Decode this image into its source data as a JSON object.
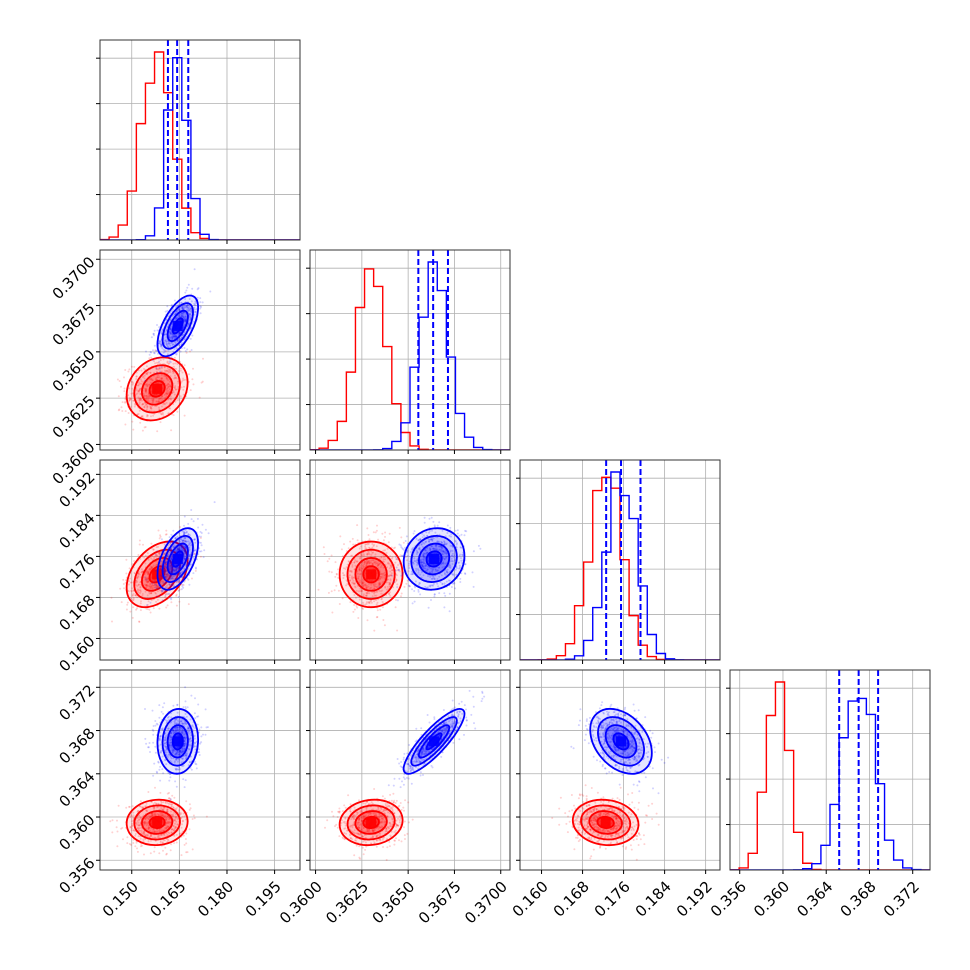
{
  "chart_data": {
    "type": "corner",
    "title": "",
    "colors": {
      "red": "#ff0000",
      "blue": "#0000ff"
    },
    "grid": true,
    "parameters": [
      {
        "range": [
          0.14,
          0.203
        ],
        "ticks": [
          "0.150",
          "0.165",
          "0.180",
          "0.195"
        ],
        "tick_values": [
          0.15,
          0.165,
          0.18,
          0.195
        ]
      },
      {
        "range": [
          0.3597,
          0.3705
        ],
        "ticks": [
          "0.3600",
          "0.3625",
          "0.3650",
          "0.3675",
          "0.3700"
        ],
        "tick_values": [
          0.36,
          0.3625,
          0.365,
          0.3675,
          0.37
        ]
      },
      {
        "range": [
          0.1558,
          0.1948
        ],
        "ticks": [
          "0.160",
          "0.168",
          "0.176",
          "0.184",
          "0.192"
        ],
        "tick_values": [
          0.16,
          0.168,
          0.176,
          0.184,
          0.192
        ]
      },
      {
        "range": [
          0.3551,
          0.3736
        ],
        "ticks": [
          "0.356",
          "0.360",
          "0.364",
          "0.368",
          "0.372"
        ],
        "tick_values": [
          0.356,
          0.36,
          0.364,
          0.368,
          0.372
        ]
      }
    ],
    "series": [
      {
        "color": "#ff0000",
        "means": [
          0.158,
          0.363,
          0.1725,
          0.3595
        ],
        "stds": [
          0.0048,
          0.00085,
          0.0032,
          0.00105
        ],
        "correlations": {
          "0-1": 0.2,
          "0-2": 0.4,
          "0-3": 0.05,
          "1-2": 0.0,
          "1-3": 0.1,
          "2-3": -0.1
        }
      },
      {
        "color": "#0000ff",
        "means": [
          0.1645,
          0.3664,
          0.1755,
          0.367
        ],
        "stds": [
          0.0032,
          0.00082,
          0.003,
          0.0015
        ],
        "correlations": {
          "0-1": 0.6,
          "0-2": 0.5,
          "0-3": 0.05,
          "1-2": 0.1,
          "1-3": 0.85,
          "2-3": -0.35
        },
        "quantile_lines": [
          [
            0.1614,
            0.1643,
            0.1678
          ],
          [
            0.36555,
            0.36635,
            0.36715
          ],
          [
            0.1726,
            0.1755,
            0.1793
          ],
          [
            0.3652,
            0.367,
            0.3688
          ]
        ]
      }
    ]
  }
}
